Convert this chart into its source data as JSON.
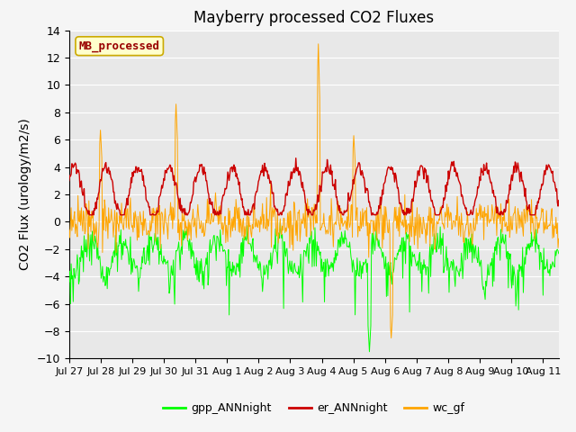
{
  "title": "Mayberry processed CO2 Fluxes",
  "ylabel": "CO2 Flux (urology/m2/s)",
  "ylim": [
    -10,
    14
  ],
  "yticks": [
    -10,
    -8,
    -6,
    -4,
    -2,
    0,
    2,
    4,
    6,
    8,
    10,
    12,
    14
  ],
  "n_points": 720,
  "start_day": 0.0,
  "end_day": 15.5,
  "xtick_labels": [
    "Jul 27",
    "Jul 28",
    "Jul 29",
    "Jul 30",
    "Jul 31",
    "Aug 1",
    "Aug 2",
    "Aug 3",
    "Aug 4",
    "Aug 5",
    "Aug 6",
    "Aug 7",
    "Aug 8",
    "Aug 9",
    "Aug 10",
    "Aug 11"
  ],
  "colors": {
    "gpp": "#00ff00",
    "er": "#cc0000",
    "wc": "#ffa500"
  },
  "legend_label": "MB_processed",
  "legend_bg": "#ffffcc",
  "legend_edge": "#ccaa00",
  "legend_text_color": "#990000",
  "plot_bg": "#e8e8e8",
  "fig_bg": "#f5f5f5",
  "grid_color": "#ffffff",
  "title_fontsize": 12,
  "axis_fontsize": 10,
  "tick_fontsize": 9
}
